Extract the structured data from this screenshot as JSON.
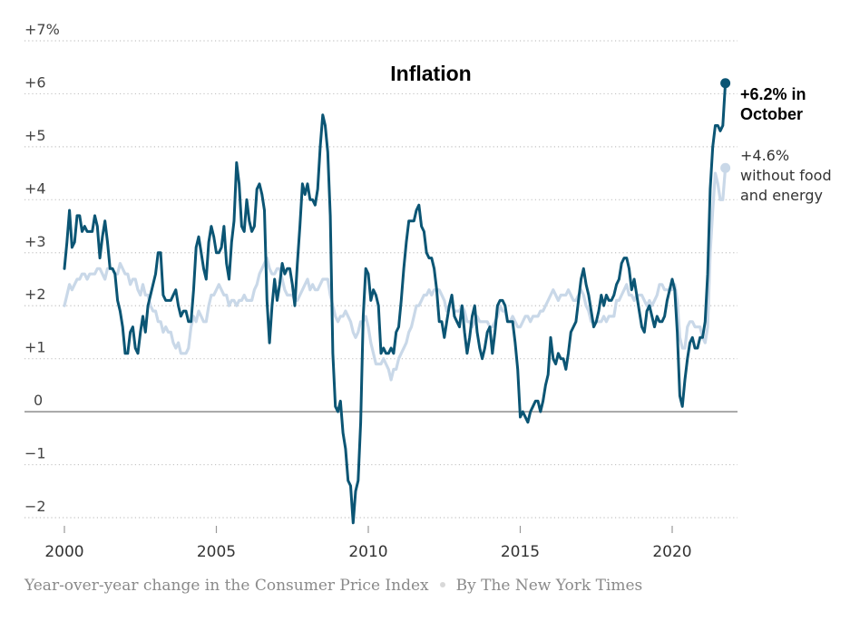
{
  "chart_data": {
    "type": "line",
    "title": "Inflation",
    "xlabel": "",
    "ylabel": "",
    "x_range": [
      "2000-01",
      "2021-10"
    ],
    "x_ticks": [
      {
        "value": 2000,
        "label": "2000"
      },
      {
        "value": 2005,
        "label": "2005"
      },
      {
        "value": 2010,
        "label": "2010"
      },
      {
        "value": 2015,
        "label": "2015"
      },
      {
        "value": 2020,
        "label": "2020"
      }
    ],
    "ylim": [
      -2,
      7
    ],
    "y_ticks": [
      {
        "value": 7,
        "label": "+7%"
      },
      {
        "value": 6,
        "label": "+6"
      },
      {
        "value": 5,
        "label": "+5"
      },
      {
        "value": 4,
        "label": "+4"
      },
      {
        "value": 3,
        "label": "+3"
      },
      {
        "value": 2,
        "label": "+2"
      },
      {
        "value": 1,
        "label": "+1"
      },
      {
        "value": 0,
        "label": "0"
      },
      {
        "value": -1,
        "label": "−1"
      },
      {
        "value": -2,
        "label": "−2"
      }
    ],
    "grid": true,
    "frequency": "monthly",
    "start": "2000-01",
    "series": [
      {
        "name": "Consumer Price Index (all items)",
        "color": "#0b5574",
        "end_label": "+6.2% in October",
        "end_label_lines": [
          "+6.2% in",
          "October"
        ],
        "values": [
          2.7,
          3.2,
          3.8,
          3.1,
          3.2,
          3.7,
          3.7,
          3.4,
          3.5,
          3.4,
          3.4,
          3.4,
          3.7,
          3.5,
          2.9,
          3.3,
          3.6,
          3.2,
          2.7,
          2.7,
          2.6,
          2.1,
          1.9,
          1.6,
          1.1,
          1.1,
          1.5,
          1.6,
          1.2,
          1.1,
          1.5,
          1.8,
          1.5,
          2.0,
          2.2,
          2.4,
          2.6,
          3.0,
          3.0,
          2.2,
          2.1,
          2.1,
          2.1,
          2.2,
          2.3,
          2.0,
          1.8,
          1.9,
          1.9,
          1.7,
          1.7,
          2.3,
          3.1,
          3.3,
          3.0,
          2.7,
          2.5,
          3.2,
          3.5,
          3.3,
          3.0,
          3.0,
          3.1,
          3.5,
          2.8,
          2.5,
          3.2,
          3.6,
          4.7,
          4.3,
          3.5,
          3.4,
          4.0,
          3.6,
          3.4,
          3.5,
          4.2,
          4.3,
          4.1,
          3.8,
          2.1,
          1.3,
          2.0,
          2.5,
          2.1,
          2.4,
          2.8,
          2.6,
          2.7,
          2.7,
          2.4,
          2.0,
          2.8,
          3.5,
          4.3,
          4.1,
          4.3,
          4.0,
          4.0,
          3.9,
          4.2,
          5.0,
          5.6,
          5.4,
          4.9,
          3.7,
          1.1,
          0.1,
          0.0,
          0.2,
          -0.4,
          -0.7,
          -1.3,
          -1.4,
          -2.1,
          -1.5,
          -1.3,
          -0.2,
          1.8,
          2.7,
          2.6,
          2.1,
          2.3,
          2.2,
          2.0,
          1.1,
          1.2,
          1.1,
          1.1,
          1.2,
          1.1,
          1.5,
          1.6,
          2.1,
          2.7,
          3.2,
          3.6,
          3.6,
          3.6,
          3.8,
          3.9,
          3.5,
          3.4,
          3.0,
          2.9,
          2.9,
          2.7,
          2.3,
          1.7,
          1.7,
          1.4,
          1.7,
          2.0,
          2.2,
          1.8,
          1.7,
          1.6,
          2.0,
          1.5,
          1.1,
          1.4,
          1.8,
          2.0,
          1.5,
          1.2,
          1.0,
          1.2,
          1.5,
          1.6,
          1.1,
          1.5,
          2.0,
          2.1,
          2.1,
          2.0,
          1.7,
          1.7,
          1.7,
          1.3,
          0.8,
          -0.1,
          0.0,
          -0.1,
          -0.2,
          0.0,
          0.1,
          0.2,
          0.2,
          0.0,
          0.2,
          0.5,
          0.7,
          1.4,
          1.0,
          0.9,
          1.1,
          1.0,
          1.0,
          0.8,
          1.1,
          1.5,
          1.6,
          1.7,
          2.1,
          2.5,
          2.7,
          2.4,
          2.2,
          1.9,
          1.6,
          1.7,
          1.9,
          2.2,
          2.0,
          2.2,
          2.1,
          2.1,
          2.2,
          2.4,
          2.5,
          2.8,
          2.9,
          2.9,
          2.7,
          2.3,
          2.5,
          2.2,
          1.9,
          1.6,
          1.5,
          1.9,
          2.0,
          1.8,
          1.6,
          1.8,
          1.7,
          1.7,
          1.8,
          2.1,
          2.3,
          2.5,
          2.3,
          1.5,
          0.3,
          0.1,
          0.6,
          1.0,
          1.3,
          1.4,
          1.2,
          1.2,
          1.4,
          1.4,
          1.7,
          2.6,
          4.2,
          5.0,
          5.4,
          5.4,
          5.3,
          5.4,
          6.2
        ]
      },
      {
        "name": "Without food and energy (core CPI)",
        "color": "#c9d8e8",
        "end_label": "+4.6% without food and energy",
        "end_label_lines": [
          "+4.6%",
          "without food",
          "and energy"
        ],
        "values": [
          2.0,
          2.2,
          2.4,
          2.3,
          2.4,
          2.5,
          2.5,
          2.6,
          2.6,
          2.5,
          2.6,
          2.6,
          2.6,
          2.7,
          2.7,
          2.6,
          2.5,
          2.7,
          2.7,
          2.7,
          2.6,
          2.6,
          2.8,
          2.7,
          2.6,
          2.6,
          2.4,
          2.5,
          2.5,
          2.3,
          2.2,
          2.4,
          2.2,
          2.2,
          2.0,
          1.9,
          1.9,
          1.7,
          1.7,
          1.5,
          1.6,
          1.5,
          1.5,
          1.3,
          1.2,
          1.3,
          1.1,
          1.1,
          1.1,
          1.2,
          1.6,
          1.8,
          1.7,
          1.9,
          1.8,
          1.7,
          1.7,
          2.0,
          2.2,
          2.2,
          2.3,
          2.4,
          2.3,
          2.2,
          2.2,
          2.0,
          2.1,
          2.1,
          2.0,
          2.1,
          2.1,
          2.2,
          2.1,
          2.1,
          2.1,
          2.3,
          2.4,
          2.6,
          2.7,
          2.8,
          2.9,
          2.7,
          2.6,
          2.6,
          2.7,
          2.7,
          2.5,
          2.3,
          2.2,
          2.2,
          2.2,
          2.1,
          2.1,
          2.2,
          2.3,
          2.4,
          2.5,
          2.3,
          2.4,
          2.3,
          2.3,
          2.4,
          2.5,
          2.5,
          2.5,
          2.2,
          2.0,
          1.8,
          1.7,
          1.8,
          1.8,
          1.9,
          1.8,
          1.7,
          1.5,
          1.4,
          1.5,
          1.7,
          1.7,
          1.8,
          1.6,
          1.3,
          1.1,
          0.9,
          0.9,
          0.9,
          1.0,
          0.9,
          0.8,
          0.6,
          0.8,
          0.8,
          1.0,
          1.1,
          1.2,
          1.3,
          1.5,
          1.6,
          1.8,
          2.0,
          2.0,
          2.1,
          2.2,
          2.2,
          2.3,
          2.2,
          2.3,
          2.3,
          2.3,
          2.2,
          2.1,
          1.9,
          2.0,
          2.0,
          1.9,
          1.9,
          1.9,
          2.0,
          1.9,
          1.7,
          1.7,
          1.6,
          1.7,
          1.8,
          1.7,
          1.7,
          1.7,
          1.7,
          1.6,
          1.6,
          1.7,
          1.8,
          2.0,
          1.9,
          1.9,
          1.7,
          1.7,
          1.8,
          1.7,
          1.6,
          1.6,
          1.7,
          1.8,
          1.8,
          1.7,
          1.8,
          1.8,
          1.8,
          1.9,
          1.9,
          2.0,
          2.1,
          2.2,
          2.3,
          2.2,
          2.1,
          2.2,
          2.2,
          2.2,
          2.3,
          2.2,
          2.1,
          2.1,
          2.2,
          2.3,
          2.2,
          2.0,
          1.9,
          1.7,
          1.7,
          1.7,
          1.7,
          1.7,
          1.8,
          1.7,
          1.8,
          1.8,
          1.8,
          2.1,
          2.1,
          2.2,
          2.3,
          2.4,
          2.2,
          2.2,
          2.1,
          2.2,
          2.2,
          2.2,
          2.1,
          2.0,
          2.1,
          2.0,
          2.1,
          2.2,
          2.4,
          2.4,
          2.3,
          2.3,
          2.3,
          2.3,
          2.4,
          2.1,
          1.4,
          1.2,
          1.2,
          1.6,
          1.7,
          1.7,
          1.6,
          1.6,
          1.6,
          1.4,
          1.3,
          1.6,
          3.0,
          3.8,
          4.5,
          4.3,
          4.0,
          4.0,
          4.6
        ]
      }
    ]
  },
  "footer": {
    "source": "Year-over-year change in the Consumer Price Index",
    "credit": "By The New York Times"
  }
}
